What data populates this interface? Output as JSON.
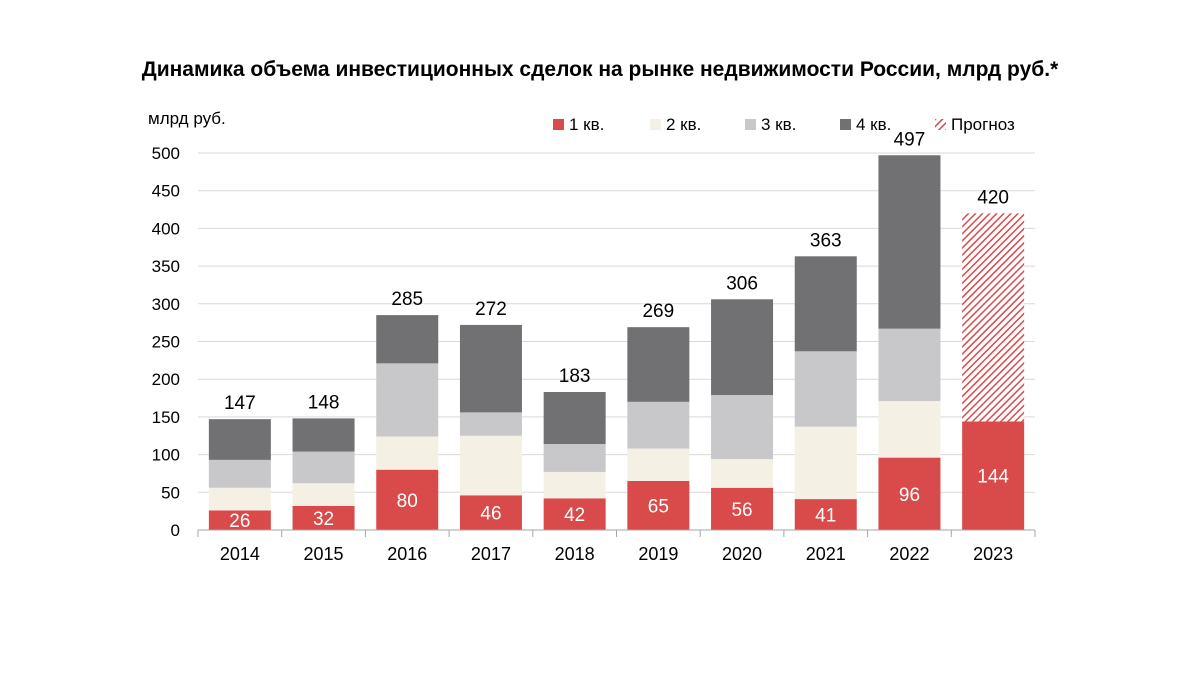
{
  "chart_data": {
    "type": "bar",
    "stacked": true,
    "title": "Динамика объема инвестиционных сделок на рынке недвижимости России, млрд руб.*",
    "ylabel": "млрд руб.",
    "xlabel": "",
    "ylim": [
      0,
      500
    ],
    "yticks": [
      0,
      50,
      100,
      150,
      200,
      250,
      300,
      350,
      400,
      450,
      500
    ],
    "grid": true,
    "legend_position": "top-right",
    "categories": [
      "2014",
      "2015",
      "2016",
      "2017",
      "2018",
      "2019",
      "2020",
      "2021",
      "2022",
      "2023"
    ],
    "series": [
      {
        "name": "1 кв.",
        "color": "#d94a4a",
        "values": [
          26,
          32,
          80,
          46,
          42,
          65,
          56,
          41,
          96,
          144
        ]
      },
      {
        "name": "2 кв.",
        "color": "#f4f0e4",
        "values": [
          30,
          30,
          44,
          79,
          35,
          43,
          38,
          96,
          75,
          null
        ]
      },
      {
        "name": "3 кв.",
        "color": "#c8c8ca",
        "values": [
          37,
          42,
          97,
          31,
          37,
          62,
          85,
          100,
          96,
          null
        ]
      },
      {
        "name": "4 кв.",
        "color": "#717174",
        "values": [
          54,
          44,
          64,
          116,
          69,
          99,
          127,
          126,
          230,
          null
        ]
      },
      {
        "name": "Прогноз",
        "color": "#d94a4a",
        "pattern": "hatch",
        "values": [
          null,
          null,
          null,
          null,
          null,
          null,
          null,
          null,
          null,
          276
        ]
      }
    ],
    "totals": [
      147,
      148,
      285,
      272,
      183,
      269,
      306,
      363,
      497,
      420
    ],
    "data_label_series": "1 кв."
  }
}
